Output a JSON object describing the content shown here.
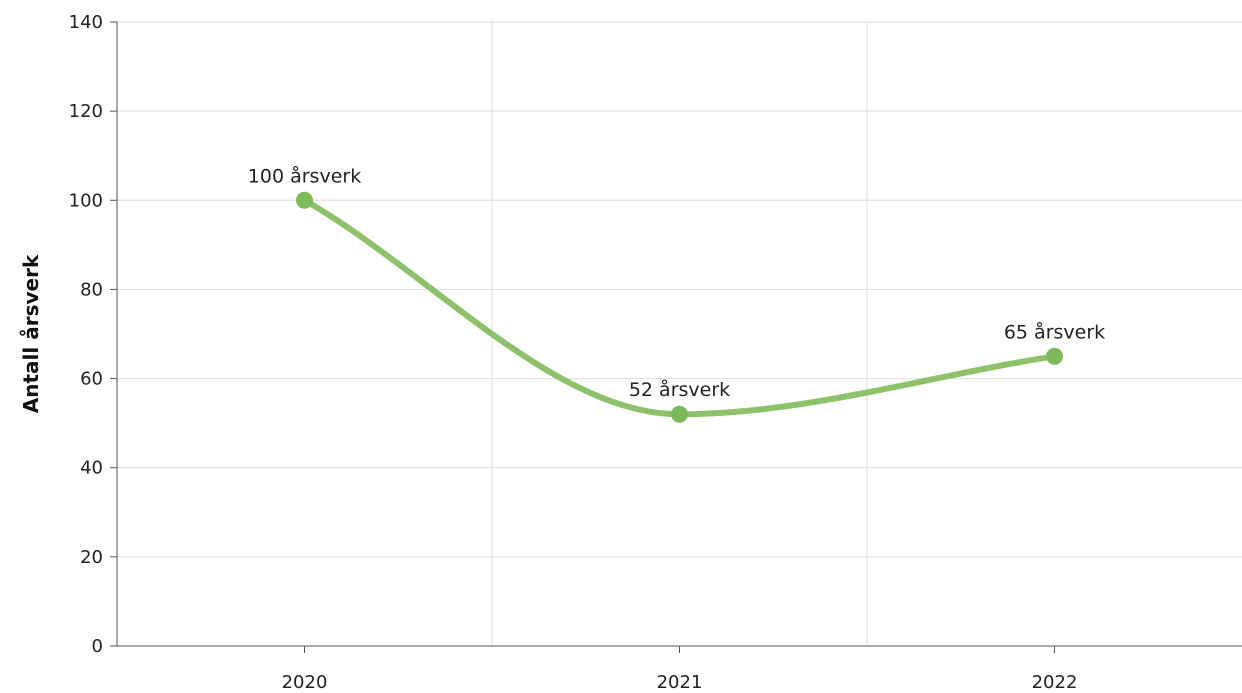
{
  "chart_data": {
    "type": "line",
    "title": "",
    "xlabel": "",
    "ylabel": "Antall årsverk",
    "categories": [
      "2020",
      "2021",
      "2022"
    ],
    "series": [
      {
        "values": [
          100,
          52,
          65
        ],
        "data_labels": [
          "100 årsverk",
          "52 årsverk",
          "65 årsverk"
        ]
      }
    ],
    "ylim": [
      0,
      140
    ],
    "yticks": [
      0,
      20,
      40,
      60,
      80,
      100,
      120,
      140
    ],
    "smooth": true,
    "grid": true,
    "legend": "none",
    "colors": {
      "series": "#8dc26b",
      "marker": "#7dba5a",
      "grid": "#dddddd",
      "axis": "#555555"
    }
  }
}
